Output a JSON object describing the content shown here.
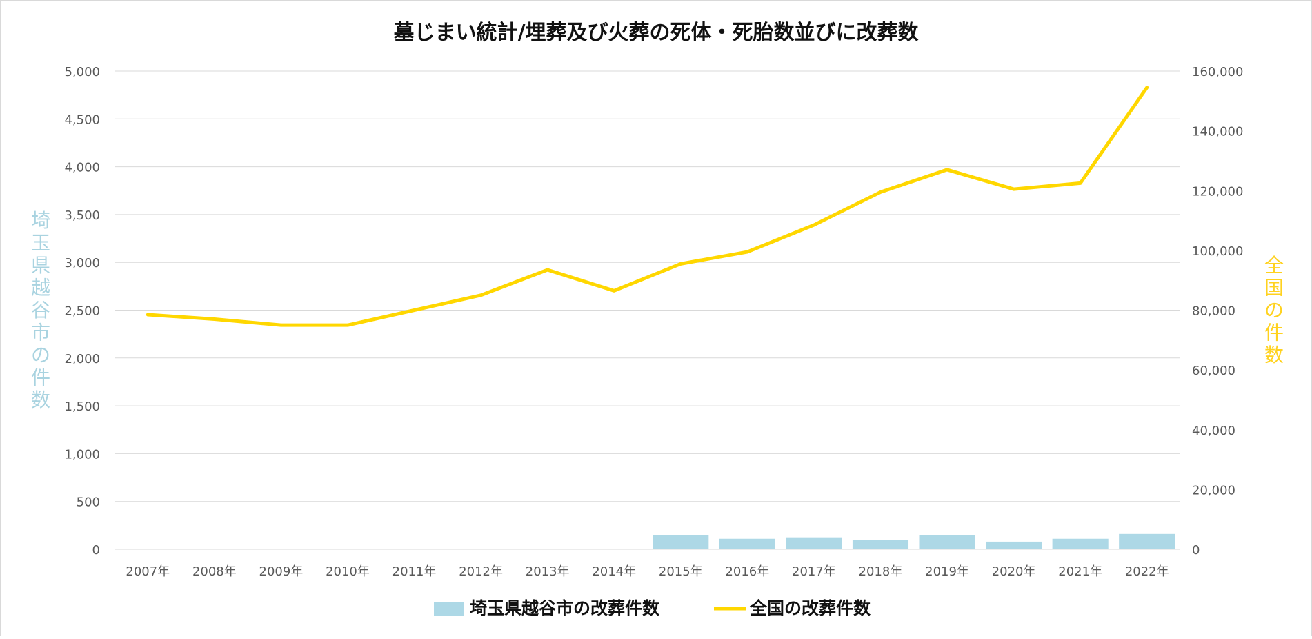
{
  "chart_data": {
    "type": "bar+line",
    "title": "墓じまい統計/埋葬及び火葬の死体・死胎数並びに改葬数",
    "categories": [
      "2007年",
      "2008年",
      "2009年",
      "2010年",
      "2011年",
      "2012年",
      "2013年",
      "2014年",
      "2015年",
      "2016年",
      "2017年",
      "2018年",
      "2019年",
      "2020年",
      "2021年",
      "2022年"
    ],
    "series": [
      {
        "name": "埼玉県越谷市の改葬件数",
        "type": "bar",
        "axis": "left",
        "color": "#add8e6",
        "values": [
          0,
          0,
          0,
          0,
          0,
          0,
          0,
          0,
          150,
          110,
          125,
          95,
          145,
          80,
          110,
          160
        ]
      },
      {
        "name": "全国の改葬件数",
        "type": "line",
        "axis": "right",
        "color": "#ffd700",
        "values": [
          78500,
          77000,
          75000,
          75000,
          80000,
          85000,
          93500,
          86500,
          95500,
          99500,
          108500,
          119500,
          127000,
          120500,
          122500,
          154500
        ]
      }
    ],
    "ylabel_left": "埼玉県越谷市の件数",
    "ylabel_right": "全国の件数",
    "ylim_left": [
      0,
      5000
    ],
    "ylim_right": [
      0,
      160000
    ],
    "yticks_left": [
      "0",
      "500",
      "1,000",
      "1,500",
      "2,000",
      "2,500",
      "3,000",
      "3,500",
      "4,000",
      "4,500",
      "5,000"
    ],
    "yticks_right": [
      "0",
      "20,000",
      "40,000",
      "60,000",
      "80,000",
      "100,000",
      "120,000",
      "140,000",
      "160,000"
    ],
    "grid": true,
    "legend_position": "bottom"
  }
}
